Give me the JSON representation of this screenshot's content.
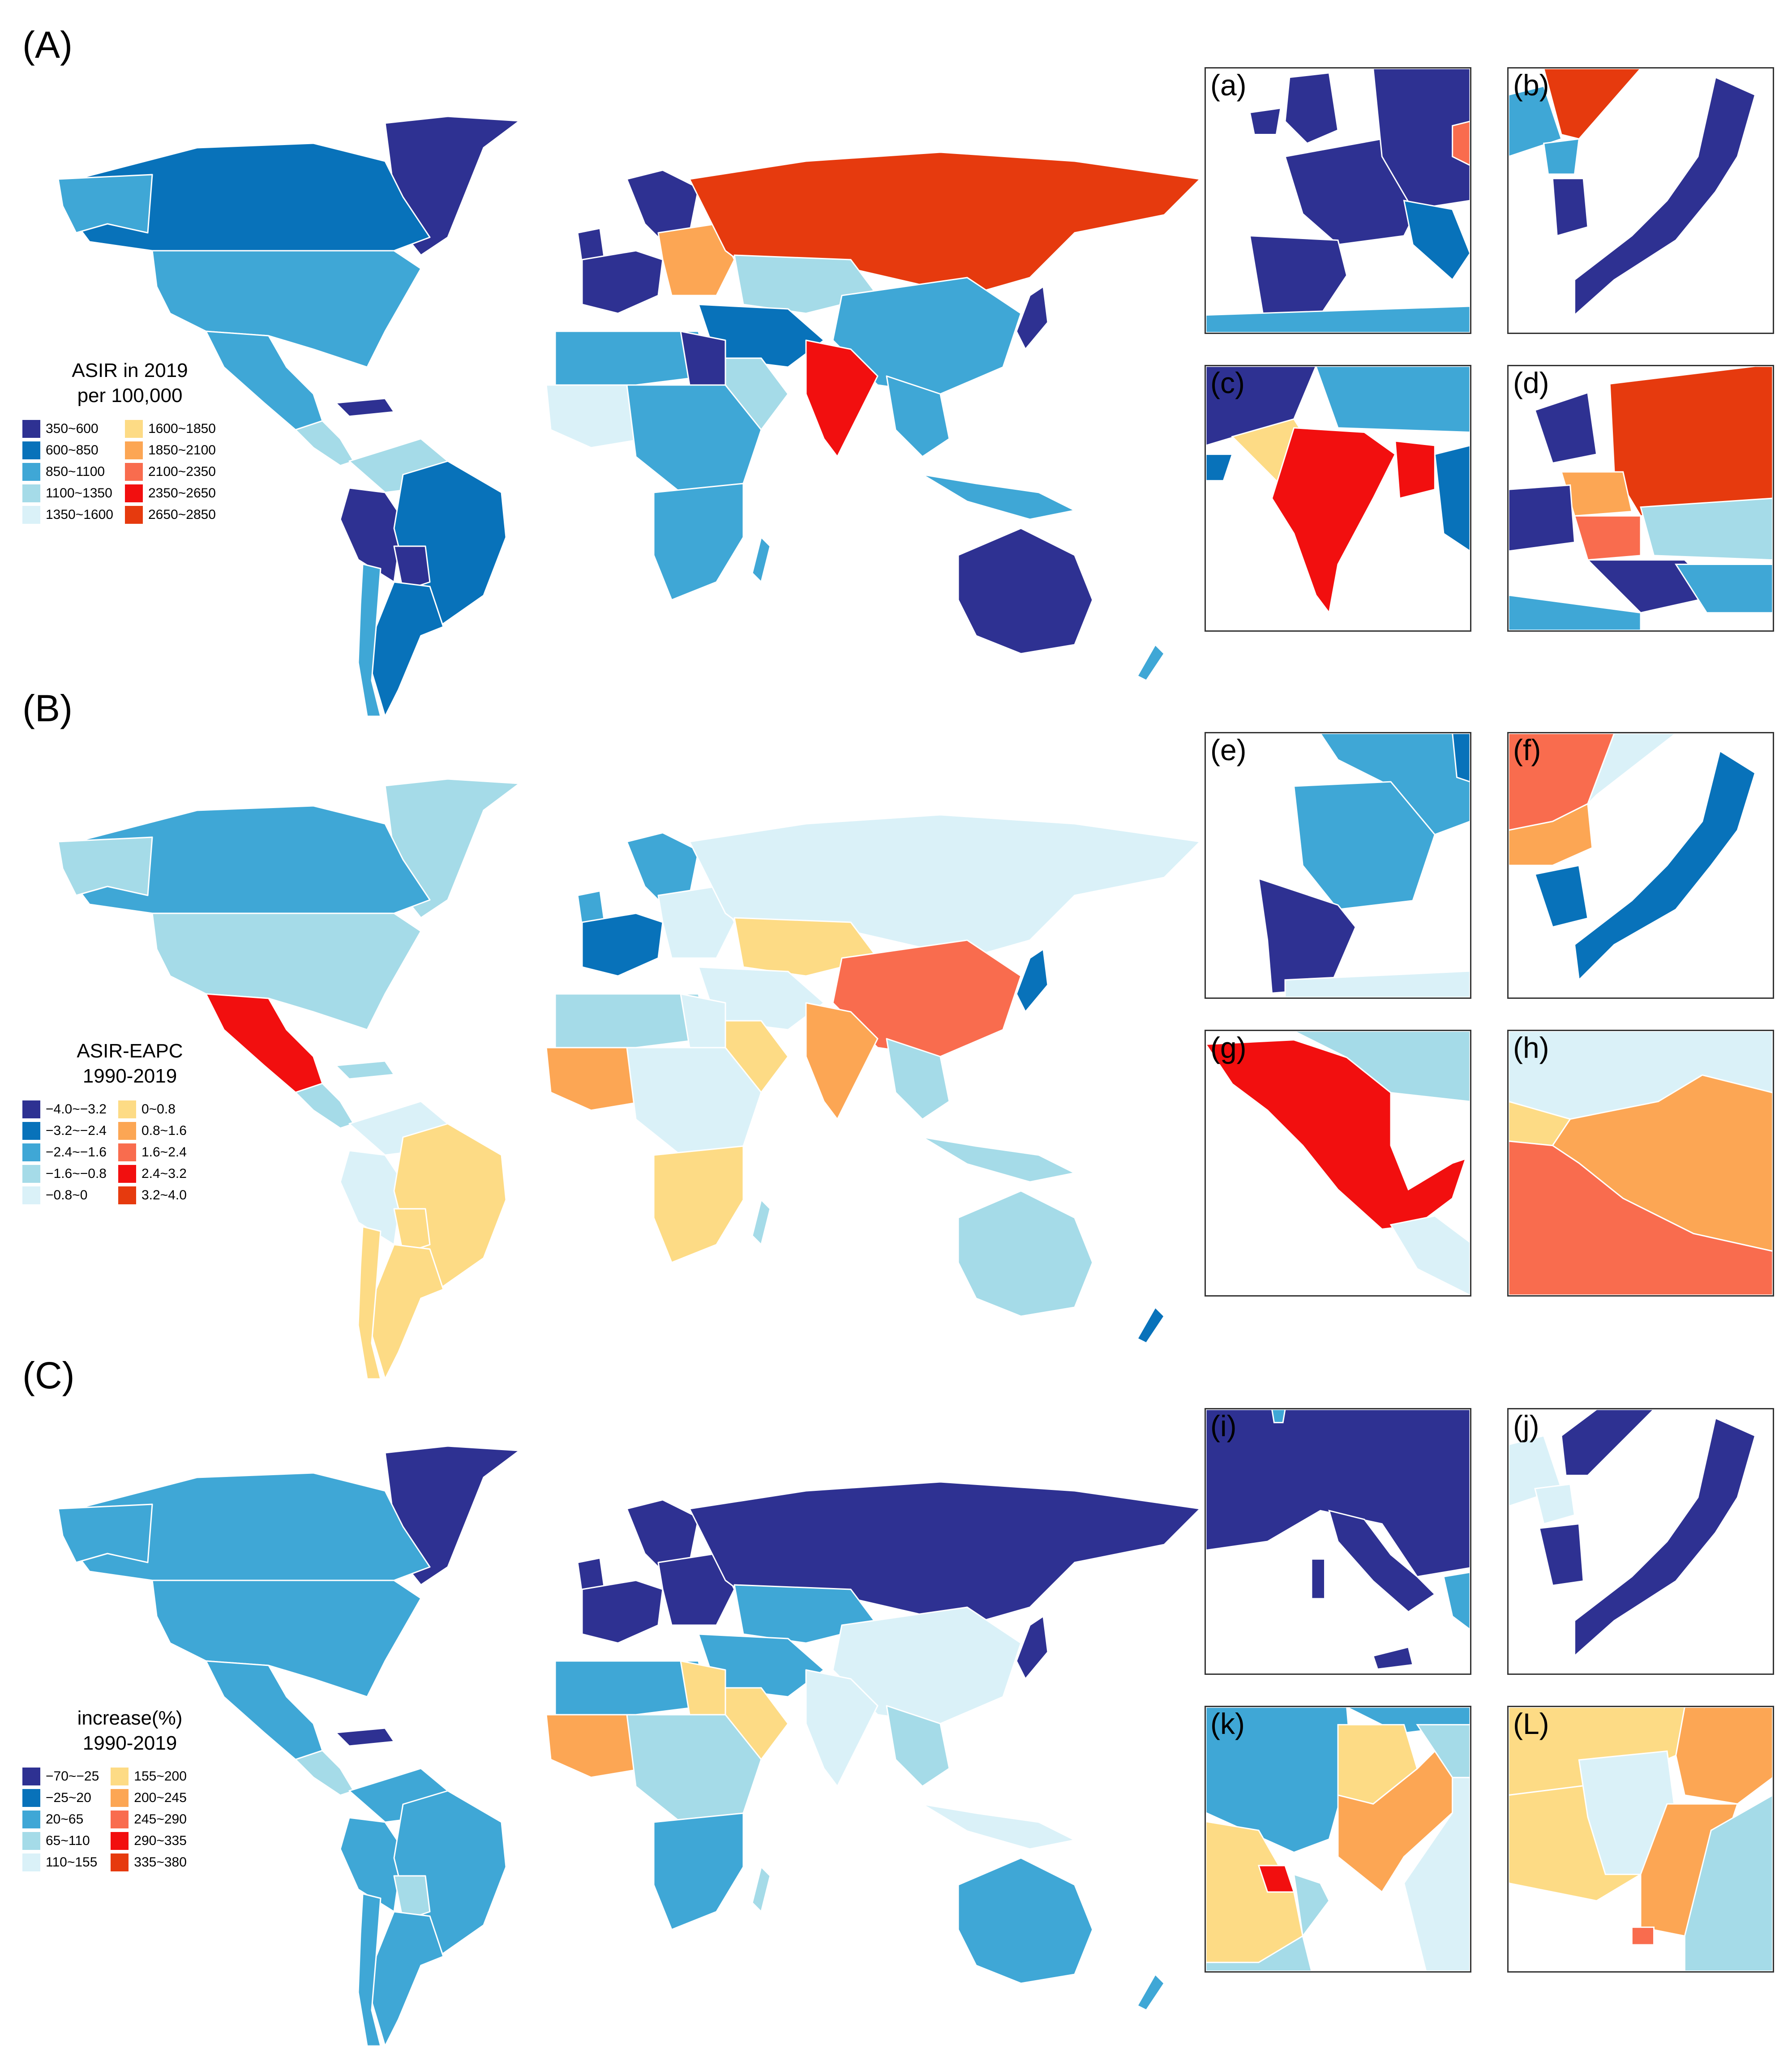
{
  "panels": [
    {
      "label": "(A)",
      "legend_title_line1": "ASIR in 2019",
      "legend_title_line2": "per 100,000",
      "legend": [
        {
          "label": "350~600",
          "color": "#2E3192"
        },
        {
          "label": "600~850",
          "color": "#0872BA"
        },
        {
          "label": "850~1100",
          "color": "#3FA7D6"
        },
        {
          "label": "1100~1350",
          "color": "#A5DBE8"
        },
        {
          "label": "1350~1600",
          "color": "#DAF1F8"
        },
        {
          "label": "1600~1850",
          "color": "#FDDB85"
        },
        {
          "label": "1850~2100",
          "color": "#FCA654"
        },
        {
          "label": "2100~2350",
          "color": "#F96C4E"
        },
        {
          "label": "2350~2650",
          "color": "#F20F0F"
        },
        {
          "label": "2650~2850",
          "color": "#E63A0E"
        }
      ],
      "insets": [
        {
          "label": "(a)",
          "region": "Western Europe"
        },
        {
          "label": "(b)",
          "region": "Korea and Japan"
        },
        {
          "label": "(c)",
          "region": "South Asia"
        },
        {
          "label": "(d)",
          "region": "Eastern Europe and Central Asia"
        }
      ]
    },
    {
      "label": "(B)",
      "legend_title_line1": "ASIR-EAPC",
      "legend_title_line2": "1990-2019",
      "legend": [
        {
          "label": "−4.0~−3.2",
          "color": "#2E3192"
        },
        {
          "label": "−3.2~−2.4",
          "color": "#0872BA"
        },
        {
          "label": "−2.4~−1.6",
          "color": "#3FA7D6"
        },
        {
          "label": "−1.6~−0.8",
          "color": "#A5DBE8"
        },
        {
          "label": "−0.8~0",
          "color": "#DAF1F8"
        },
        {
          "label": "0~0.8",
          "color": "#FDDB85"
        },
        {
          "label": "0.8~1.6",
          "color": "#FCA654"
        },
        {
          "label": "1.6~2.4",
          "color": "#F96C4E"
        },
        {
          "label": "2.4~3.2",
          "color": "#F20F0F"
        },
        {
          "label": "3.2~4.0",
          "color": "#E63A0E"
        }
      ],
      "insets": [
        {
          "label": "(e)",
          "region": "France and Iberia"
        },
        {
          "label": "(f)",
          "region": "Korea and Japan"
        },
        {
          "label": "(g)",
          "region": "Mexico"
        },
        {
          "label": "(h)",
          "region": "China and Mongolia"
        }
      ]
    },
    {
      "label": "(C)",
      "legend_title_line1": "increase(%)",
      "legend_title_line2": "1990-2019",
      "legend": [
        {
          "label": "−70~−25",
          "color": "#2E3192"
        },
        {
          "label": "−25~20",
          "color": "#0872BA"
        },
        {
          "label": "20~65",
          "color": "#3FA7D6"
        },
        {
          "label": "65~110",
          "color": "#A5DBE8"
        },
        {
          "label": "110~155",
          "color": "#DAF1F8"
        },
        {
          "label": "155~200",
          "color": "#FDDB85"
        },
        {
          "label": "200~245",
          "color": "#FCA654"
        },
        {
          "label": "245~290",
          "color": "#F96C4E"
        },
        {
          "label": "290~335",
          "color": "#F20F0F"
        },
        {
          "label": "335~380",
          "color": "#E63A0E"
        }
      ],
      "insets": [
        {
          "label": "(i)",
          "region": "Central Europe and Italy"
        },
        {
          "label": "(j)",
          "region": "Korea and Japan"
        },
        {
          "label": "(k)",
          "region": "Middle East"
        },
        {
          "label": "(L)",
          "region": "West Africa"
        }
      ]
    }
  ]
}
